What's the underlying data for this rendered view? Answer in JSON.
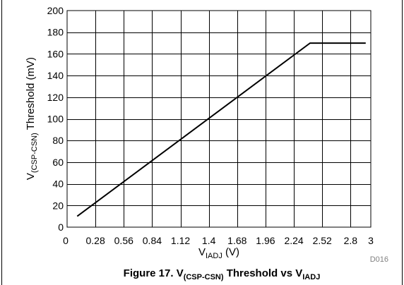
{
  "chart_data": {
    "type": "line",
    "title": "",
    "xlabel": {
      "main": "V",
      "sub": "IADJ",
      "unit": " (V)"
    },
    "ylabel": {
      "main": "V",
      "sub": "(CSP-CSN)",
      "rest": " Threshold (mV)"
    },
    "xlim": [
      0,
      3
    ],
    "ylim": [
      0,
      200
    ],
    "xticks": [
      "0",
      "0.28",
      "0.56",
      "0.84",
      "1.12",
      "1.4",
      "1.68",
      "1.96",
      "2.24",
      "2.52",
      "2.8",
      "3"
    ],
    "xtick_values": [
      0,
      0.28,
      0.56,
      0.84,
      1.12,
      1.4,
      1.68,
      1.96,
      2.24,
      2.52,
      2.8,
      3
    ],
    "yticks": [
      "0",
      "20",
      "40",
      "60",
      "80",
      "100",
      "120",
      "140",
      "160",
      "180",
      "200"
    ],
    "ytick_values": [
      0,
      20,
      40,
      60,
      80,
      100,
      120,
      140,
      160,
      180,
      200
    ],
    "grid": true,
    "series": [
      {
        "x": [
          0.1,
          2.4,
          2.95
        ],
        "y": [
          10,
          170,
          170
        ]
      }
    ],
    "graph_code": "D016"
  },
  "caption": {
    "prefix": "Figure 17. V",
    "sub1": "(CSP-CSN)",
    "middle": " Threshold vs V",
    "sub2": "IADJ"
  }
}
